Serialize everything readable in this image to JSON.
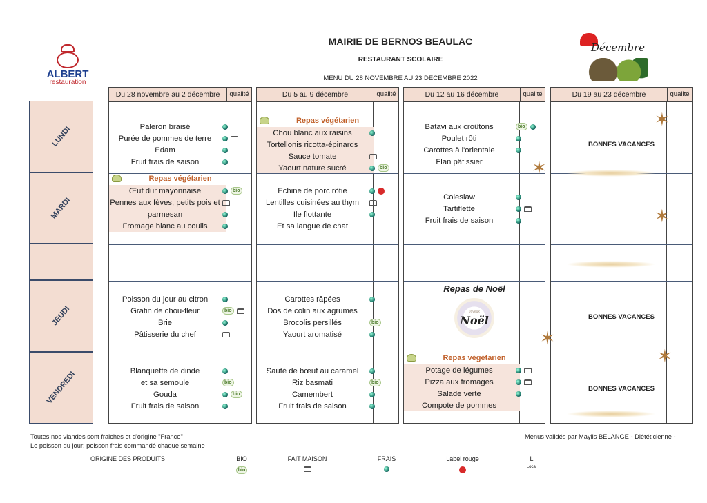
{
  "header": {
    "title": "MAIRIE DE BERNOS BEAULAC",
    "subtitle": "RESTAURANT SCOLAIRE",
    "period": "MENU DU 28 NOVEMBRE AU 23 DECEMBRE 2022"
  },
  "logo": {
    "brand": "ALBERT",
    "sub": "restauration"
  },
  "decoration": {
    "word": "Décembre"
  },
  "days": [
    "LUNDI",
    "MARDI",
    "",
    "JEUDI",
    "VENDREDI"
  ],
  "quality_label": "qualité",
  "weeks": [
    {
      "header": "Du 28 novembre au 2 décembre",
      "days": [
        {
          "items": [
            {
              "name": "Paleron braisé",
              "q": [
                "frais"
              ]
            },
            {
              "name": "Purée de pommes de terre",
              "q": [
                "frais",
                "fait"
              ]
            },
            {
              "name": "Edam",
              "q": [
                "frais"
              ]
            },
            {
              "name": "Fruit frais de saison",
              "q": [
                "frais"
              ]
            }
          ]
        },
        {
          "veg": "Repas végétarien",
          "items": [
            {
              "name": "Œuf dur mayonnaise",
              "q": [
                "frais",
                "bio"
              ]
            },
            {
              "name": "Pennes aux fèves, petits pois et",
              "q": [
                "fait"
              ]
            },
            {
              "name": "parmesan",
              "q": [
                "frais"
              ]
            },
            {
              "name": "Fromage blanc au coulis",
              "q": [
                "frais"
              ]
            }
          ]
        },
        {
          "items": []
        },
        {
          "items": [
            {
              "name": "Poisson du jour au citron",
              "q": [
                "frais"
              ]
            },
            {
              "name": "Gratin de chou-fleur",
              "q": [
                "bio",
                "fait"
              ]
            },
            {
              "name": "Brie",
              "q": [
                "frais"
              ]
            },
            {
              "name": "Pâtisserie du chef",
              "q": [
                "fait"
              ]
            }
          ]
        },
        {
          "items": [
            {
              "name": "Blanquette de dinde",
              "q": [
                "frais"
              ]
            },
            {
              "name": "et sa semoule",
              "q": [
                "bio"
              ]
            },
            {
              "name": "Gouda",
              "q": [
                "frais",
                "bio"
              ]
            },
            {
              "name": "Fruit frais de saison",
              "q": [
                "frais"
              ]
            }
          ]
        }
      ]
    },
    {
      "header": "Du 5 au 9 décembre",
      "days": [
        {
          "veg": "Repas végétarien",
          "items": [
            {
              "name": "Chou blanc aux raisins",
              "q": [
                "frais"
              ]
            },
            {
              "name": "Tortellonis ricotta-épinards",
              "q": []
            },
            {
              "name": "Sauce tomate",
              "q": [
                "fait"
              ]
            },
            {
              "name": "Yaourt nature sucré",
              "q": [
                "frais",
                "bio"
              ]
            }
          ]
        },
        {
          "items": [
            {
              "name": "Echine de porc rôtie",
              "q": [
                "frais",
                "rouge"
              ]
            },
            {
              "name": "Lentilles cuisinées au thym",
              "q": [
                "fait"
              ]
            },
            {
              "name": "Ile flottante",
              "q": [
                "frais"
              ]
            },
            {
              "name": "Et sa langue de chat",
              "q": []
            }
          ]
        },
        {
          "items": []
        },
        {
          "items": [
            {
              "name": "Carottes râpées",
              "q": [
                "frais"
              ]
            },
            {
              "name": "Dos de colin aux agrumes",
              "q": []
            },
            {
              "name": "Brocolis persillés",
              "q": [
                "bio"
              ]
            },
            {
              "name": "Yaourt aromatisé",
              "q": [
                "frais"
              ]
            }
          ]
        },
        {
          "items": [
            {
              "name": "Sauté de bœuf au caramel",
              "q": [
                "frais"
              ]
            },
            {
              "name": "Riz basmati",
              "q": [
                "bio"
              ]
            },
            {
              "name": "Camembert",
              "q": [
                "frais"
              ]
            },
            {
              "name": "Fruit frais de saison",
              "q": [
                "frais"
              ]
            }
          ]
        }
      ]
    },
    {
      "header": "Du 12 au 16 décembre",
      "days": [
        {
          "items": [
            {
              "name": "Batavi aux croûtons",
              "q": [
                "bio",
                "frais"
              ]
            },
            {
              "name": "Poulet rôti",
              "q": [
                "frais"
              ]
            },
            {
              "name": "Carottes à l'orientale",
              "q": [
                "frais"
              ]
            },
            {
              "name": "Flan pâtissier",
              "q": []
            }
          ]
        },
        {
          "items": [
            {
              "name": "Coleslaw",
              "q": [
                "frais"
              ]
            },
            {
              "name": "Tartiflette",
              "q": [
                "frais",
                "fait"
              ]
            },
            {
              "name": "Fruit frais de saison",
              "q": [
                "frais"
              ]
            }
          ]
        },
        {
          "items": []
        },
        {
          "noel": "Repas de Noël",
          "noel_logo": "Joyeux Noël",
          "items": []
        },
        {
          "veg": "Repas végétarien",
          "items": [
            {
              "name": "Potage de légumes",
              "q": [
                "frais",
                "fait"
              ]
            },
            {
              "name": "Pizza aux fromages",
              "q": [
                "frais",
                "fait"
              ]
            },
            {
              "name": "Salade verte",
              "q": [
                "frais"
              ]
            },
            {
              "name": "Compote de pommes",
              "q": []
            }
          ]
        }
      ]
    },
    {
      "header": "Du 19 au 23 décembre",
      "days": [
        {
          "vacances": "BONNES VACANCES",
          "items": []
        },
        {
          "items": []
        },
        {
          "items": []
        },
        {
          "vacances": "BONNES VACANCES",
          "items": []
        },
        {
          "vacances": "BONNES VACANCES",
          "items": []
        }
      ]
    }
  ],
  "footer": {
    "note1": "Toutes nos viandes sont fraiches et d'origine \"France\"",
    "note2": "Le poisson du jour: poisson frais  commandé chaque semaine",
    "validated": "Menus validés  par Maylis BELANGE - Diététicienne -"
  },
  "legend": {
    "title": "ORIGINE DES PRODUITS",
    "bio": "BIO",
    "fait": "FAIT MAISON",
    "frais": "FRAIS",
    "rouge": "Label rouge",
    "local": "L",
    "local_sub": "Local"
  }
}
